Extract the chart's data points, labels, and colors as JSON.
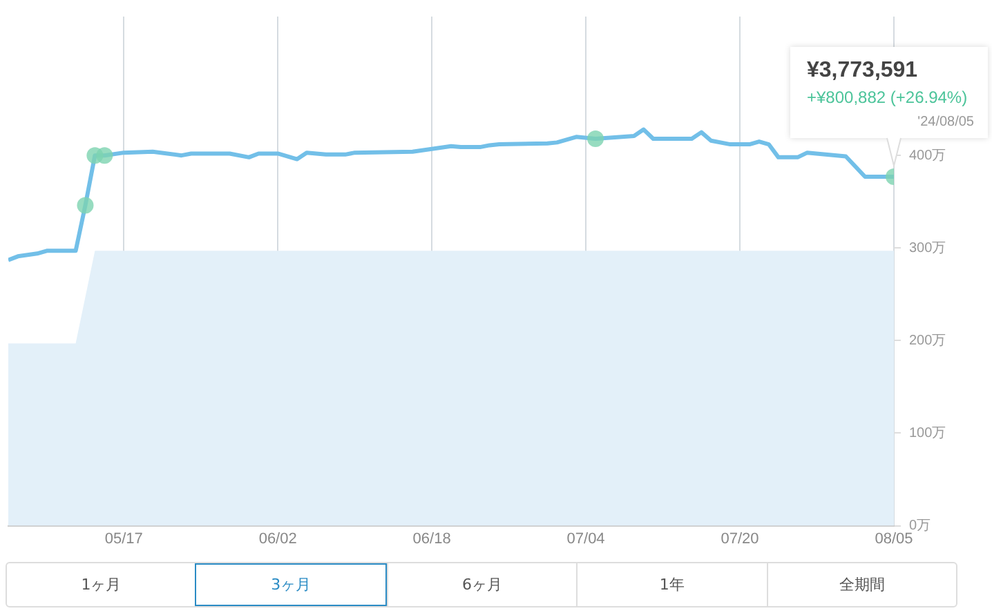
{
  "chart_data": {
    "type": "line",
    "xlim": [
      "2024-05-05",
      "2024-08-05"
    ],
    "xticks": [
      {
        "value": "2024-05-17",
        "label": "05/17"
      },
      {
        "value": "2024-06-02",
        "label": "06/02"
      },
      {
        "value": "2024-06-18",
        "label": "06/18"
      },
      {
        "value": "2024-07-04",
        "label": "07/04"
      },
      {
        "value": "2024-07-20",
        "label": "07/20"
      },
      {
        "value": "2024-08-05",
        "label": "08/05"
      }
    ],
    "ylim": [
      0,
      550
    ],
    "yticks": [
      {
        "value": 0,
        "label": "0万"
      },
      {
        "value": 100,
        "label": "100万"
      },
      {
        "value": 200,
        "label": "200万"
      },
      {
        "value": 300,
        "label": "300万"
      },
      {
        "value": 400,
        "label": "400万"
      }
    ],
    "grid": "x",
    "legend": false,
    "series": [
      {
        "type": "area",
        "color": "#e3f0f9",
        "x": [
          "2024-05-05",
          "2024-05-12",
          "2024-05-14",
          "2024-08-05"
        ],
        "values": [
          197,
          197,
          297,
          297
        ]
      },
      {
        "type": "line",
        "color": "#72bfe8",
        "marker": "none",
        "x": [
          "2024-05-05",
          "2024-05-06",
          "2024-05-08",
          "2024-05-09",
          "2024-05-12",
          "2024-05-13",
          "2024-05-14",
          "2024-05-15",
          "2024-05-17",
          "2024-05-20",
          "2024-05-23",
          "2024-05-24",
          "2024-05-28",
          "2024-05-30",
          "2024-05-31",
          "2024-06-02",
          "2024-06-04",
          "2024-06-05",
          "2024-06-07",
          "2024-06-09",
          "2024-06-10",
          "2024-06-16",
          "2024-06-18",
          "2024-06-20",
          "2024-06-21",
          "2024-06-23",
          "2024-06-24",
          "2024-06-25",
          "2024-06-30",
          "2024-07-01",
          "2024-07-03",
          "2024-07-05",
          "2024-07-09",
          "2024-07-10",
          "2024-07-11",
          "2024-07-15",
          "2024-07-16",
          "2024-07-17",
          "2024-07-19",
          "2024-07-21",
          "2024-07-22",
          "2024-07-23",
          "2024-07-24",
          "2024-07-26",
          "2024-07-27",
          "2024-07-31",
          "2024-08-01",
          "2024-08-02",
          "2024-08-04",
          "2024-08-05"
        ],
        "values": [
          287,
          291,
          294,
          297,
          297,
          346,
          400,
          400,
          403,
          404,
          400,
          402,
          402,
          398,
          402,
          402,
          396,
          403,
          401,
          401,
          403,
          404,
          407,
          410,
          409,
          409,
          411,
          412,
          413,
          414,
          420,
          418,
          421,
          428,
          418,
          418,
          425,
          416,
          412,
          412,
          415,
          412,
          398,
          398,
          403,
          399,
          388,
          377,
          377,
          377
        ]
      },
      {
        "type": "scatter",
        "color": "#7dd3b0",
        "marker": "circle",
        "x": [
          "2024-05-13",
          "2024-05-14",
          "2024-05-15",
          "2024-07-05",
          "2024-08-05"
        ],
        "values": [
          346,
          400,
          400,
          418,
          377
        ]
      }
    ],
    "annotations": [
      "¥3,773,591",
      "+¥800,882 (+26.94%)",
      "'24/08/05",
      "1ヶ月",
      "3ヶ月",
      "6ヶ月",
      "1年",
      "全期間"
    ]
  }
}
